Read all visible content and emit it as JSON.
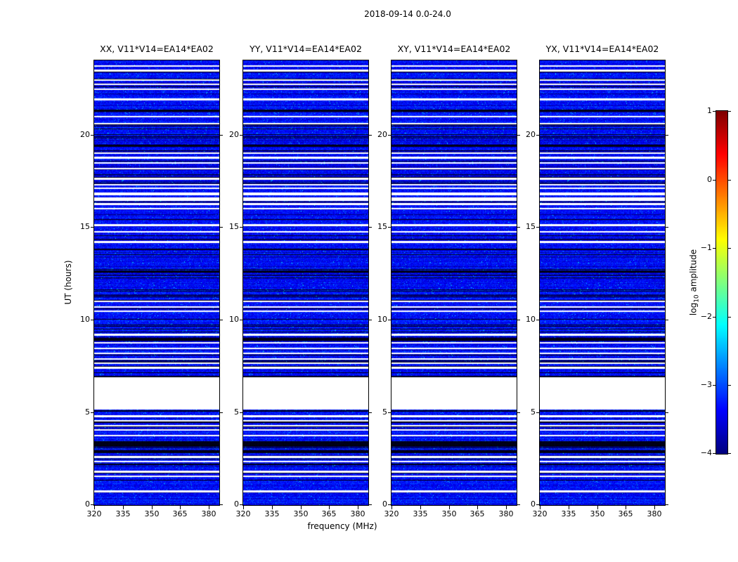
{
  "title": "2018-09-14 0.0-24.0",
  "chart_data": {
    "type": "heatmap",
    "xlabel": "frequency (MHz)",
    "ylabel": "UT (hours)",
    "x_ticks": [
      320,
      335,
      350,
      365,
      380
    ],
    "x_range": [
      320,
      385.5
    ],
    "y_ticks": [
      0,
      5,
      10,
      15,
      20
    ],
    "y_range": [
      0,
      24
    ],
    "panels": [
      {
        "pol": "XX",
        "title": "XX, V11*V14=EA14*EA02"
      },
      {
        "pol": "YY",
        "title": "YY, V11*V14=EA14*EA02"
      },
      {
        "pol": "XY",
        "title": "XY, V11*V14=EA14*EA02"
      },
      {
        "pol": "YX",
        "title": "YX, V11*V14=EA14*EA02"
      }
    ],
    "colorbar": {
      "label_prefix": "log",
      "label_sub": "10",
      "label_suffix": " amplitude",
      "ticks": [
        1,
        0,
        -1,
        -2,
        -3,
        -4
      ],
      "range": [
        -4,
        1
      ],
      "colormap": "jet"
    },
    "white_band_ut": [
      5.15,
      6.9
    ],
    "black_band_ut": [
      3.15,
      3.45
    ],
    "white_stripes_ut": [
      [
        23.7,
        0.08
      ],
      [
        23.45,
        0.08
      ],
      [
        22.95,
        0.08
      ],
      [
        22.7,
        0.08
      ],
      [
        22.45,
        0.08
      ],
      [
        21.9,
        0.12
      ],
      [
        20.95,
        0.08
      ],
      [
        20.6,
        0.08
      ],
      [
        19.0,
        0.08
      ],
      [
        18.75,
        0.08
      ],
      [
        18.45,
        0.08
      ],
      [
        18.15,
        0.08
      ],
      [
        17.6,
        0.12
      ],
      [
        17.3,
        0.08
      ],
      [
        17.1,
        0.08
      ],
      [
        16.8,
        0.14
      ],
      [
        16.5,
        0.18
      ],
      [
        16.25,
        0.12
      ],
      [
        16.0,
        0.1
      ],
      [
        15.1,
        0.12
      ],
      [
        14.75,
        0.08
      ],
      [
        14.2,
        0.08
      ],
      [
        11.0,
        0.1
      ],
      [
        10.7,
        0.08
      ],
      [
        10.45,
        0.08
      ],
      [
        9.2,
        0.12
      ],
      [
        8.75,
        0.08
      ],
      [
        8.45,
        0.08
      ],
      [
        8.2,
        0.08
      ],
      [
        7.9,
        0.08
      ],
      [
        7.65,
        0.08
      ],
      [
        7.4,
        0.12
      ],
      [
        4.8,
        0.12
      ],
      [
        4.55,
        0.08
      ],
      [
        4.3,
        0.08
      ],
      [
        4.05,
        0.08
      ],
      [
        3.75,
        0.08
      ],
      [
        2.6,
        0.1
      ],
      [
        2.35,
        0.08
      ],
      [
        1.8,
        0.08
      ],
      [
        1.55,
        0.08
      ],
      [
        0.75,
        0.12
      ]
    ],
    "black_stripes_ut": [
      [
        21.3,
        0.1
      ],
      [
        19.4,
        0.1
      ],
      [
        12.6,
        0.08
      ],
      [
        9.0,
        0.08
      ],
      [
        6.95,
        0.08
      ],
      [
        5.08,
        0.08
      ],
      [
        2.9,
        0.1
      ]
    ],
    "noise": {
      "seed": 20180914,
      "base_log10_amp": -3.35,
      "spread": 0.55,
      "bright_speck_prob": 0.02,
      "dark_line_prob": 0.13,
      "faint_line_prob": 0.08
    }
  }
}
